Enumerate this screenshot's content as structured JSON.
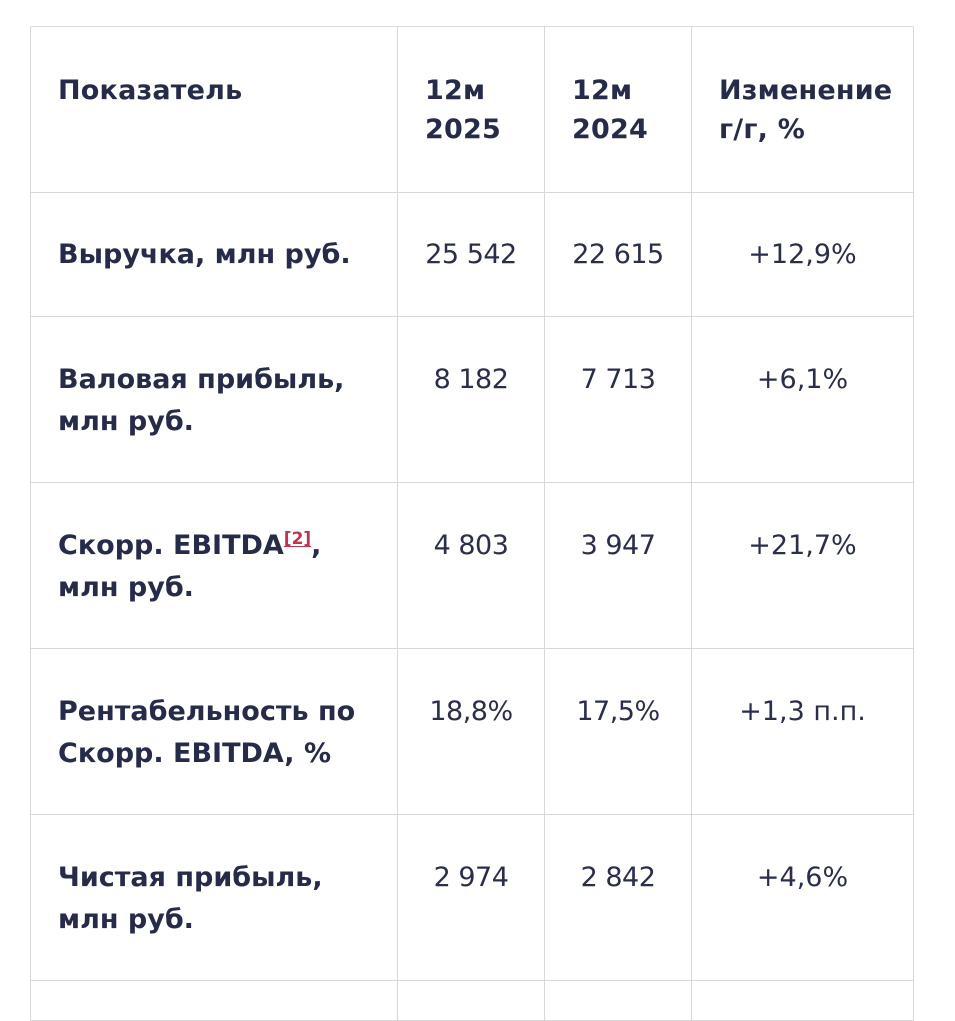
{
  "table": {
    "headers": {
      "label": "Показатель",
      "y2025_line1": "12м",
      "y2025_line2": "2025",
      "y2024_line1": "12м",
      "y2024_line2": "2024",
      "change_line1": "Изменение",
      "change_line2": "г/г, %"
    },
    "rows": [
      {
        "label_line1": "Выручка, млн руб.",
        "label_line2": "",
        "y2025": "25 542",
        "y2024": "22 615",
        "change": "+12,9%"
      },
      {
        "label_line1": "Валовая прибыль,",
        "label_line2": "млн руб.",
        "y2025": "8 182",
        "y2024": "7 713",
        "change": "+6,1%"
      },
      {
        "label_line1_prefix": "Скорр. EBITDA",
        "footnote": "[2]",
        "label_line1_suffix": ",",
        "label_line2": "млн руб.",
        "y2025": "4 803",
        "y2024": "3 947",
        "change": "+21,7%"
      },
      {
        "label_line1": "Рентабельность по",
        "label_line2": "Скорр. EBITDA, %",
        "y2025": "18,8%",
        "y2024": "17,5%",
        "change": "+1,3 п.п."
      },
      {
        "label_line1": "Чистая прибыль,",
        "label_line2": "млн руб.",
        "y2025": "2 974",
        "y2024": "2 842",
        "change": "+4,6%"
      }
    ]
  },
  "colors": {
    "text": "#262b4a",
    "border": "#d7d7de",
    "footnote": "#c0334d",
    "background": "#ffffff"
  }
}
